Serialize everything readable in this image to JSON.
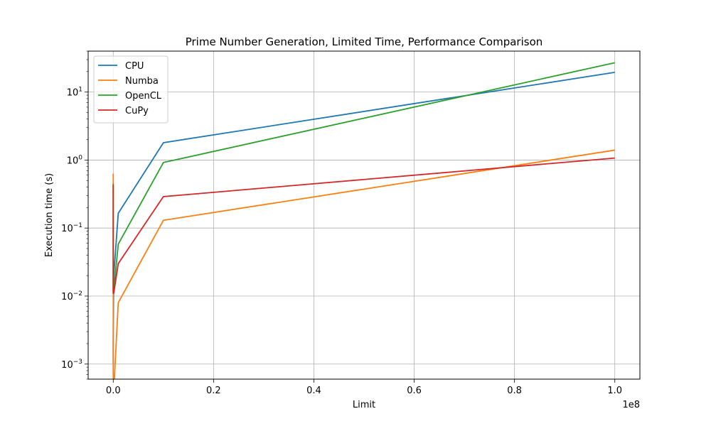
{
  "chart_data": {
    "type": "line",
    "title": "Prime Number Generation, Limited Time, Performance Comparison",
    "xlabel": "Limit",
    "ylabel": "Execution time (s)",
    "x_offset_label": "1e8",
    "yscale": "log",
    "grid": true,
    "legend_position": "top-left",
    "xlim": [
      -5000000,
      105000000
    ],
    "ylim": [
      0.0006,
      40
    ],
    "xticks": [
      0,
      20000000,
      40000000,
      60000000,
      80000000,
      100000000
    ],
    "xtick_labels": [
      "0.0",
      "0.2",
      "0.4",
      "0.6",
      "0.8",
      "1.0"
    ],
    "yticks": [
      0.001,
      0.01,
      0.1,
      1,
      10
    ],
    "ytick_bases": [
      "10",
      "10",
      "10",
      "10",
      "10"
    ],
    "ytick_exps": [
      "−3",
      "−2",
      "−1",
      "0",
      "1"
    ],
    "x": [
      10,
      100,
      1000,
      10000,
      100000,
      1000000,
      10000000,
      100000000
    ],
    "series": [
      {
        "name": "CPU",
        "color": "#1f77b4",
        "values": [
          0.001,
          0.001,
          0.0012,
          0.003,
          0.02,
          0.165,
          1.8,
          19.5
        ]
      },
      {
        "name": "Numba",
        "color": "#ff7f0e",
        "values": [
          0.63,
          0.001,
          0.0008,
          0.0006,
          0.0004,
          0.008,
          0.13,
          1.4
        ]
      },
      {
        "name": "OpenCL",
        "color": "#2ca02c",
        "values": [
          0.45,
          0.02,
          0.012,
          0.011,
          0.012,
          0.058,
          0.92,
          27
        ]
      },
      {
        "name": "CuPy",
        "color": "#d62728",
        "values": [
          0.43,
          0.05,
          0.012,
          0.011,
          0.011,
          0.03,
          0.29,
          1.07
        ]
      }
    ]
  }
}
